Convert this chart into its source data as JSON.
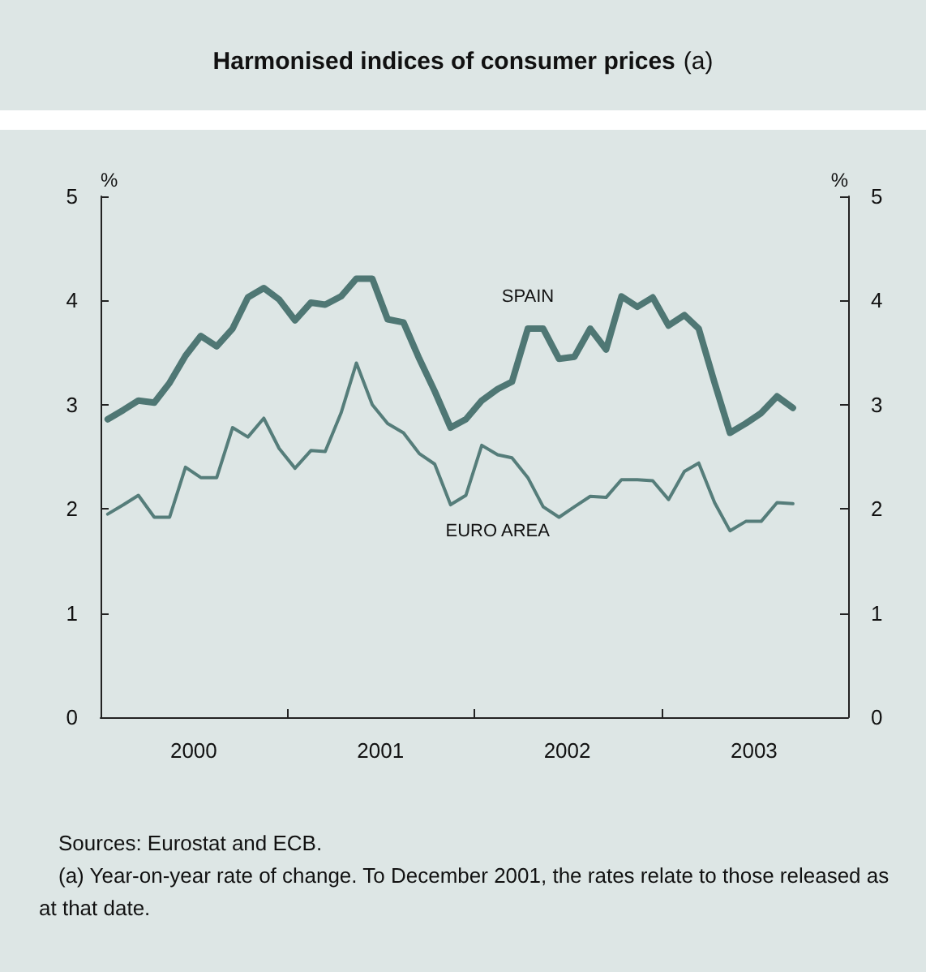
{
  "chart_data": {
    "type": "line",
    "title": "Harmonised indices of consumer prices",
    "subtitle": "(a)",
    "ylabel": "%",
    "y2label": "%",
    "x": [
      "2000-01-15",
      "2000-02-15",
      "2000-03-15",
      "2000-04-15",
      "2000-05-15",
      "2000-06-15",
      "2000-07-15",
      "2000-08-15",
      "2000-09-15",
      "2000-10-15",
      "2000-11-15",
      "2000-12-15",
      "2001-01-15",
      "2001-02-15",
      "2001-03-15",
      "2001-04-15",
      "2001-05-15",
      "2001-06-15",
      "2001-07-15",
      "2001-08-15",
      "2001-09-15",
      "2001-10-15",
      "2001-11-15",
      "2001-12-15",
      "2002-01-15",
      "2002-02-15",
      "2002-03-15",
      "2002-04-15",
      "2002-05-15",
      "2002-06-15",
      "2002-07-15",
      "2002-08-15",
      "2002-09-15",
      "2002-10-15",
      "2002-11-15",
      "2002-12-15",
      "2003-01-15",
      "2003-02-15",
      "2003-03-15",
      "2003-04-15",
      "2003-05-15",
      "2003-06-15",
      "2003-07-15",
      "2003-08-15",
      "2003-09-15"
    ],
    "series": [
      {
        "name": "SPAIN",
        "color": "#4f7774",
        "values": [
          2.86,
          2.95,
          3.04,
          3.02,
          3.21,
          3.47,
          3.66,
          3.56,
          3.73,
          4.03,
          4.12,
          4.01,
          3.81,
          3.98,
          3.96,
          4.04,
          4.21,
          4.21,
          3.82,
          3.79,
          3.44,
          3.13,
          2.78,
          2.86,
          3.04,
          3.15,
          3.22,
          3.73,
          3.73,
          3.44,
          3.46,
          3.73,
          3.53,
          4.04,
          3.94,
          4.03,
          3.76,
          3.86,
          3.73,
          3.21,
          2.73,
          2.82,
          2.92,
          3.08,
          2.97
        ]
      },
      {
        "name": "EURO AREA",
        "color": "#557d7a",
        "values": [
          1.95,
          2.04,
          2.13,
          1.92,
          1.92,
          2.4,
          2.3,
          2.3,
          2.78,
          2.69,
          2.87,
          2.58,
          2.39,
          2.56,
          2.55,
          2.92,
          3.4,
          3.0,
          2.82,
          2.73,
          2.53,
          2.43,
          2.04,
          2.13,
          2.61,
          2.52,
          2.49,
          2.3,
          2.02,
          1.92,
          2.02,
          2.12,
          2.11,
          2.28,
          2.28,
          2.27,
          2.09,
          2.36,
          2.44,
          2.06,
          1.79,
          1.88,
          1.88,
          2.06,
          2.05
        ]
      }
    ],
    "xlim": [
      "2000-01-01",
      "2004-01-01"
    ],
    "xticks": [
      {
        "value": "2000-07-01",
        "label": "2000"
      },
      {
        "value": "2001-01-01",
        "label": null
      },
      {
        "value": "2001-07-01",
        "label": "2001"
      },
      {
        "value": "2002-01-01",
        "label": null
      },
      {
        "value": "2002-07-01",
        "label": "2002"
      },
      {
        "value": "2003-01-01",
        "label": null
      },
      {
        "value": "2003-07-01",
        "label": "2003"
      }
    ],
    "ylim": [
      0,
      5
    ],
    "yticks": [
      0,
      1,
      2,
      3,
      4,
      5
    ],
    "y2lim": [
      0,
      5
    ],
    "y2ticks": [
      0,
      1,
      2,
      3,
      4,
      5
    ],
    "grid": false,
    "legend": false,
    "marker": "none",
    "line_style": "solid",
    "annotations": [
      "Sources: Eurostat and ECB.",
      "(a)  Year-on-year rate of change. To December 2001, the rates relate to those released as at that date."
    ]
  }
}
